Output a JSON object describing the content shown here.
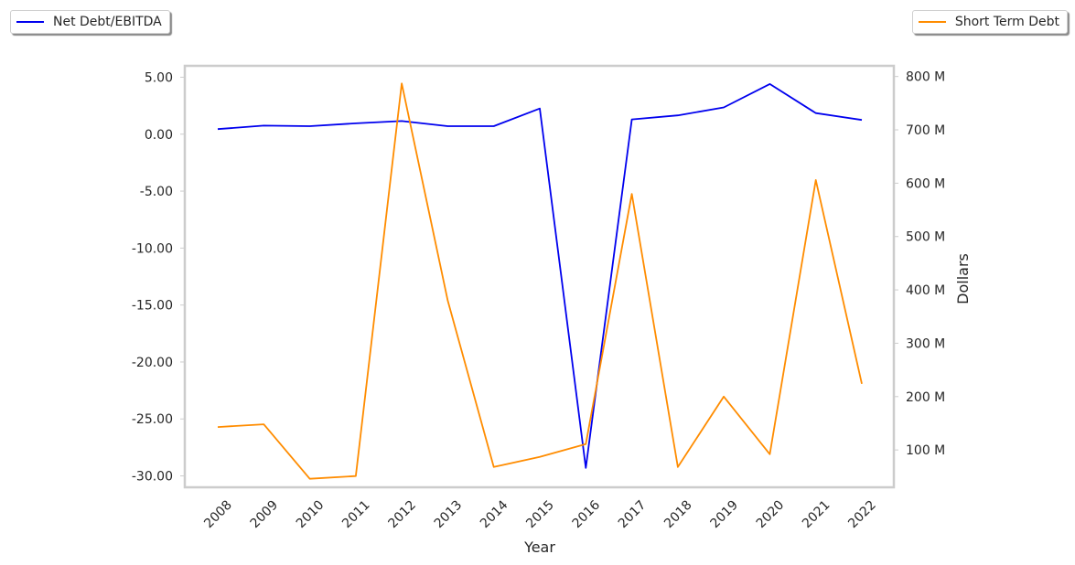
{
  "chart_data": {
    "type": "line",
    "xlabel": "Year",
    "ylabel_left": "",
    "ylabel_right": "Dollars",
    "categories": [
      "2008",
      "2009",
      "2010",
      "2011",
      "2012",
      "2013",
      "2014",
      "2015",
      "2016",
      "2017",
      "2018",
      "2019",
      "2020",
      "2021",
      "2022"
    ],
    "left_axis": {
      "ylim": [
        -31.0,
        6.0
      ],
      "ticks": [
        5,
        0,
        -5,
        -10,
        -15,
        -20,
        -25,
        -30
      ],
      "tick_labels": [
        "5.00",
        "0.00",
        "-5.00",
        "-10.00",
        "-15.00",
        "-20.00",
        "-25.00",
        "-30.00"
      ]
    },
    "right_axis": {
      "ylim": [
        30,
        820
      ],
      "ticks": [
        100,
        200,
        300,
        400,
        500,
        600,
        700,
        800
      ],
      "tick_labels": [
        "100 M",
        "200 M",
        "300 M",
        "400 M",
        "500 M",
        "600 M",
        "700 M",
        "800 M"
      ]
    },
    "series": [
      {
        "name": "Net Debt/EBITDA",
        "axis": "left",
        "color": "#0000ee",
        "values": [
          0.45,
          0.75,
          0.7,
          0.95,
          1.15,
          0.7,
          0.7,
          2.25,
          -29.3,
          1.3,
          1.65,
          2.35,
          4.4,
          1.85,
          1.25
        ]
      },
      {
        "name": "Short Term Debt",
        "axis": "right",
        "color": "#ff8c00",
        "values": [
          143,
          148,
          46,
          51,
          787,
          380,
          68,
          87,
          111,
          580,
          68,
          200,
          92,
          606,
          224
        ]
      }
    ],
    "legend": {
      "left_label": "Net Debt/EBITDA",
      "right_label": "Short Term Debt"
    },
    "grid": false,
    "legend_placement": "top-left and top-right, outside plot"
  }
}
